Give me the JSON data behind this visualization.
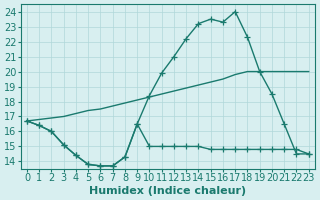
{
  "line1_x": [
    0,
    1,
    2,
    3,
    4,
    5,
    6,
    7,
    8,
    9,
    10,
    11,
    12,
    13,
    14,
    15,
    16,
    17,
    18,
    19,
    20,
    21,
    22,
    23
  ],
  "line1_y": [
    16.7,
    16.4,
    16.0,
    15.1,
    14.4,
    13.8,
    13.7,
    13.7,
    14.3,
    16.5,
    15.0,
    15.0,
    15.0,
    15.0,
    15.0,
    14.8,
    14.8,
    14.8,
    14.8,
    14.8,
    14.8,
    14.8,
    14.8,
    14.5
  ],
  "line2_x": [
    0,
    1,
    2,
    3,
    4,
    5,
    6,
    7,
    8,
    9,
    10,
    11,
    12,
    13,
    14,
    15,
    16,
    17,
    18,
    19,
    20,
    21,
    22,
    23
  ],
  "line2_y": [
    16.7,
    16.8,
    16.9,
    17.0,
    17.2,
    17.4,
    17.5,
    17.7,
    17.9,
    18.1,
    18.3,
    18.5,
    18.7,
    18.9,
    19.1,
    19.3,
    19.5,
    19.8,
    20.0,
    20.0,
    20.0,
    20.0,
    20.0,
    20.0
  ],
  "line3_x": [
    0,
    1,
    2,
    3,
    4,
    5,
    6,
    7,
    8,
    9,
    10,
    11,
    12,
    13,
    14,
    15,
    16,
    17,
    18,
    19,
    20,
    21,
    22,
    23
  ],
  "line3_y": [
    16.7,
    16.4,
    16.0,
    15.1,
    14.4,
    13.8,
    13.7,
    13.7,
    14.3,
    16.5,
    18.4,
    19.9,
    21.0,
    22.2,
    23.2,
    23.5,
    23.3,
    24.0,
    22.3,
    20.0,
    18.5,
    16.5,
    14.5,
    14.5
  ],
  "color": "#1a7a6e",
  "bg_color": "#d8eff0",
  "grid_color": "#b0d8da",
  "xlabel": "Humidex (Indice chaleur)",
  "xlim": [
    -0.5,
    23.5
  ],
  "ylim": [
    13.5,
    24.5
  ],
  "yticks": [
    14,
    15,
    16,
    17,
    18,
    19,
    20,
    21,
    22,
    23,
    24
  ],
  "xticks": [
    0,
    1,
    2,
    3,
    4,
    5,
    6,
    7,
    8,
    9,
    10,
    11,
    12,
    13,
    14,
    15,
    16,
    17,
    18,
    19,
    20,
    21,
    22,
    23
  ],
  "marker": "+",
  "linewidth": 1.0,
  "markersize": 4,
  "font_size": 7
}
